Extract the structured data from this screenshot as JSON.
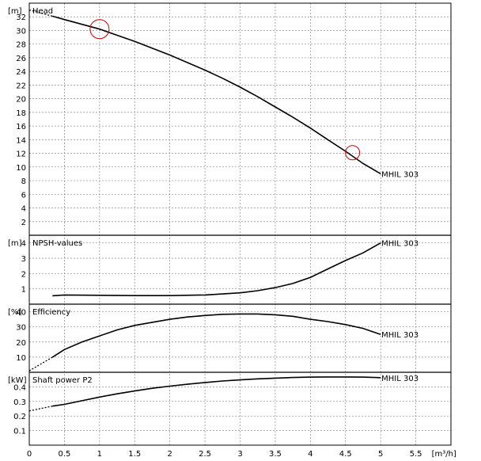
{
  "chart_data": [
    {
      "type": "line",
      "title": "Head",
      "unit_label": "[m]",
      "xlim": [
        0,
        6
      ],
      "ylim": [
        0,
        34
      ],
      "yticks": [
        2,
        4,
        6,
        8,
        10,
        12,
        14,
        16,
        18,
        20,
        22,
        24,
        26,
        28,
        30,
        32
      ],
      "series": [
        {
          "name": "MHIL 303",
          "x": [
            0.33,
            0.5,
            0.75,
            1.0,
            1.25,
            1.5,
            1.75,
            2.0,
            2.25,
            2.5,
            2.75,
            3.0,
            3.25,
            3.5,
            3.75,
            4.0,
            4.25,
            4.5,
            4.75,
            5.0
          ],
          "y": [
            32.1,
            31.6,
            30.9,
            30.2,
            29.3,
            28.4,
            27.4,
            26.4,
            25.3,
            24.2,
            23.0,
            21.7,
            20.3,
            18.8,
            17.3,
            15.7,
            14.0,
            12.3,
            10.5,
            9.0
          ],
          "ext_x": [
            0.0,
            0.33
          ],
          "ext_y": [
            33.0,
            32.1
          ]
        }
      ],
      "markers": [
        {
          "x": 1.0,
          "y": 30.2,
          "size": "large"
        },
        {
          "x": 4.6,
          "y": 12.1,
          "size": "small"
        }
      ]
    },
    {
      "type": "line",
      "title": "NPSH-values",
      "unit_label": "[m]",
      "xlim": [
        0,
        6
      ],
      "ylim": [
        0,
        4.5
      ],
      "yticks": [
        1,
        2,
        3,
        4
      ],
      "series": [
        {
          "name": "MHIL 303",
          "x": [
            0.33,
            0.5,
            1.0,
            1.5,
            2.0,
            2.5,
            3.0,
            3.25,
            3.5,
            3.75,
            4.0,
            4.25,
            4.5,
            4.75,
            5.0
          ],
          "y": [
            0.55,
            0.6,
            0.58,
            0.56,
            0.56,
            0.6,
            0.74,
            0.88,
            1.08,
            1.35,
            1.75,
            2.3,
            2.85,
            3.35,
            4.0
          ]
        }
      ]
    },
    {
      "type": "line",
      "title": "Efficiency",
      "unit_label": "[%]",
      "xlim": [
        0,
        6
      ],
      "ylim": [
        0,
        45
      ],
      "yticks": [
        10,
        20,
        30,
        40
      ],
      "series": [
        {
          "name": "MHIL 303",
          "x": [
            0.33,
            0.5,
            0.75,
            1.0,
            1.25,
            1.5,
            1.75,
            2.0,
            2.25,
            2.5,
            2.75,
            3.0,
            3.25,
            3.5,
            3.75,
            4.0,
            4.25,
            4.5,
            4.75,
            5.0
          ],
          "y": [
            10,
            15,
            20,
            24,
            28,
            31,
            33,
            35,
            36.5,
            37.5,
            38.3,
            38.5,
            38.5,
            38,
            37,
            35,
            33.5,
            31.5,
            29,
            25
          ],
          "ext_x": [
            0.0,
            0.33
          ],
          "ext_y": [
            1,
            10
          ]
        }
      ]
    },
    {
      "type": "line",
      "title": "Shaft power P2",
      "unit_label": "[kW]",
      "xlim": [
        0,
        6
      ],
      "ylim": [
        0,
        0.5
      ],
      "yticks": [
        0.1,
        0.2,
        0.3,
        0.4
      ],
      "series": [
        {
          "name": "MHIL 303",
          "x": [
            0.33,
            0.5,
            0.75,
            1.0,
            1.25,
            1.5,
            1.75,
            2.0,
            2.25,
            2.5,
            2.75,
            3.0,
            3.25,
            3.5,
            3.75,
            4.0,
            4.25,
            4.5,
            4.75,
            5.0
          ],
          "y": [
            0.268,
            0.28,
            0.305,
            0.33,
            0.352,
            0.372,
            0.39,
            0.405,
            0.418,
            0.43,
            0.44,
            0.448,
            0.455,
            0.46,
            0.464,
            0.467,
            0.468,
            0.468,
            0.467,
            0.463
          ],
          "ext_x": [
            0.0,
            0.33
          ],
          "ext_y": [
            0.235,
            0.268
          ]
        }
      ]
    }
  ],
  "x_axis": {
    "label": "[m³/h]",
    "ticks": [
      0,
      0.5,
      1,
      1.5,
      2,
      2.5,
      3,
      3.5,
      4,
      4.5,
      5,
      5.5
    ]
  }
}
